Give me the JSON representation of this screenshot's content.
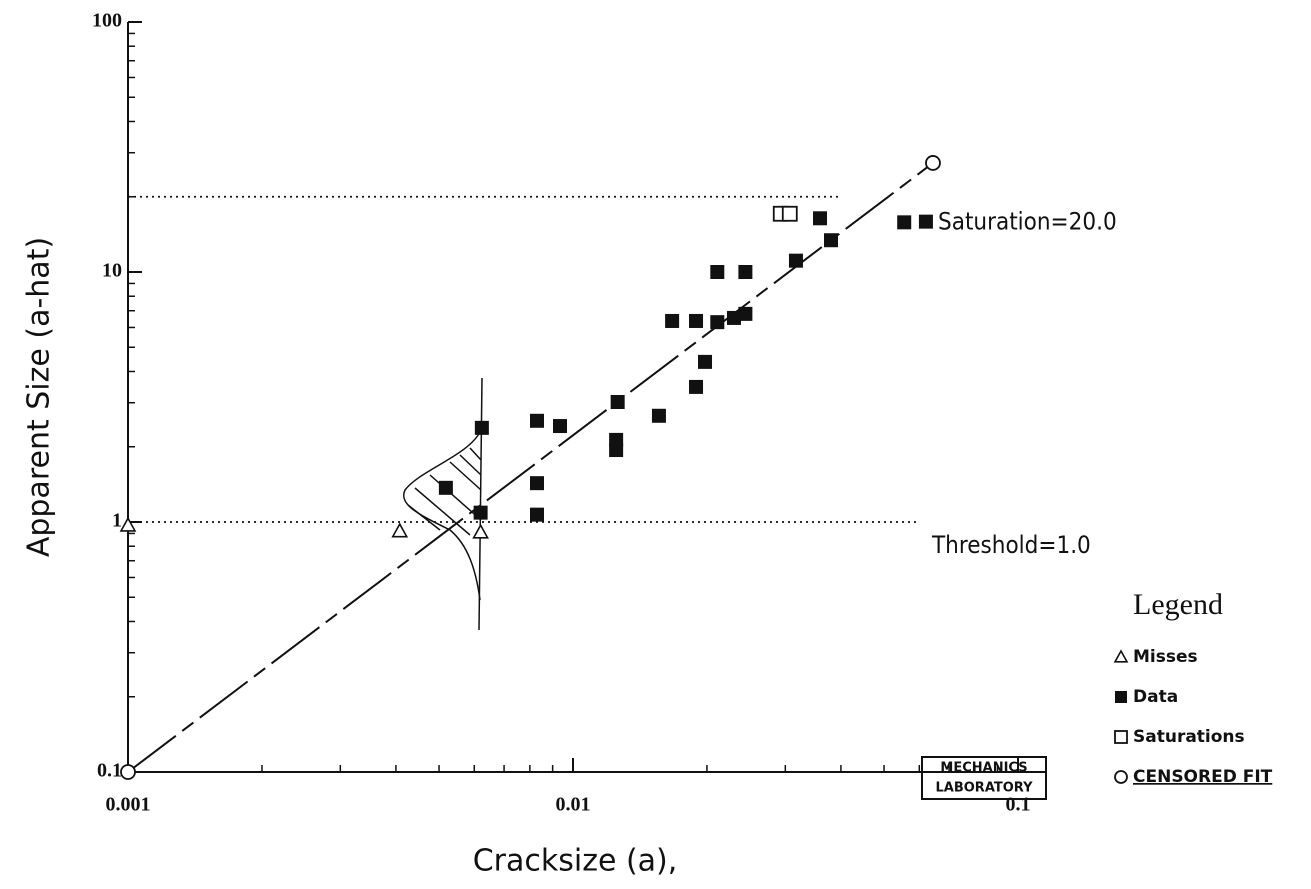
{
  "chart_data": {
    "type": "scatter",
    "x_label": "Cracksize (a),",
    "y_label": "Apparent Size (a-hat)",
    "xlog": true,
    "ylog": true,
    "minor_ticks": true,
    "xlim": [
      0.001,
      0.115
    ],
    "ylim": [
      0.1,
      100
    ],
    "xticks": [
      0.001,
      0.01,
      0.1
    ],
    "yticks": [
      0.1,
      1,
      10,
      100
    ],
    "series": [
      {
        "name": "Misses",
        "marker": "triangle",
        "color": "#111",
        "x": [
          0.001,
          0.00408,
          0.0062
        ],
        "y": [
          0.97,
          0.92,
          0.91
        ]
      },
      {
        "name": "Data",
        "marker": "square-filled",
        "color": "#111",
        "x": [
          0.00518,
          0.00624,
          0.0062,
          0.0083,
          0.0083,
          0.0083,
          0.00935,
          0.0126,
          0.0125,
          0.0125,
          0.0156,
          0.0167,
          0.0189,
          0.0189,
          0.0198,
          0.0211,
          0.0211,
          0.023,
          0.0244,
          0.0244,
          0.0317,
          0.0359,
          0.038,
          0.0555,
          0.0621
        ],
        "y": [
          1.37,
          2.38,
          1.09,
          2.54,
          1.43,
          1.07,
          2.42,
          3.02,
          2.13,
          1.94,
          2.66,
          6.37,
          6.37,
          3.47,
          4.37,
          6.3,
          10,
          6.55,
          6.8,
          10,
          11.1,
          16.4,
          13.4,
          15.8,
          15.9
        ]
      },
      {
        "name": "Saturations",
        "marker": "square-open",
        "color": "#111",
        "x": [
          0.0293,
          0.0307
        ],
        "y": [
          17.1,
          17.1
        ]
      },
      {
        "name": "CENSORED FIT",
        "marker": "circle-open",
        "color": "#111",
        "line": true,
        "x": [
          0.001,
          0.0644
        ],
        "y": [
          0.1,
          27.3
        ]
      }
    ],
    "hlines": [
      {
        "y": 20,
        "label": "Saturation=20.0"
      },
      {
        "y": 1,
        "label": "Threshold=1.0"
      }
    ],
    "legend_title": "Legend",
    "legend_position": "lower right",
    "stamp": [
      "MECHANICS",
      "LABORATORY"
    ]
  }
}
